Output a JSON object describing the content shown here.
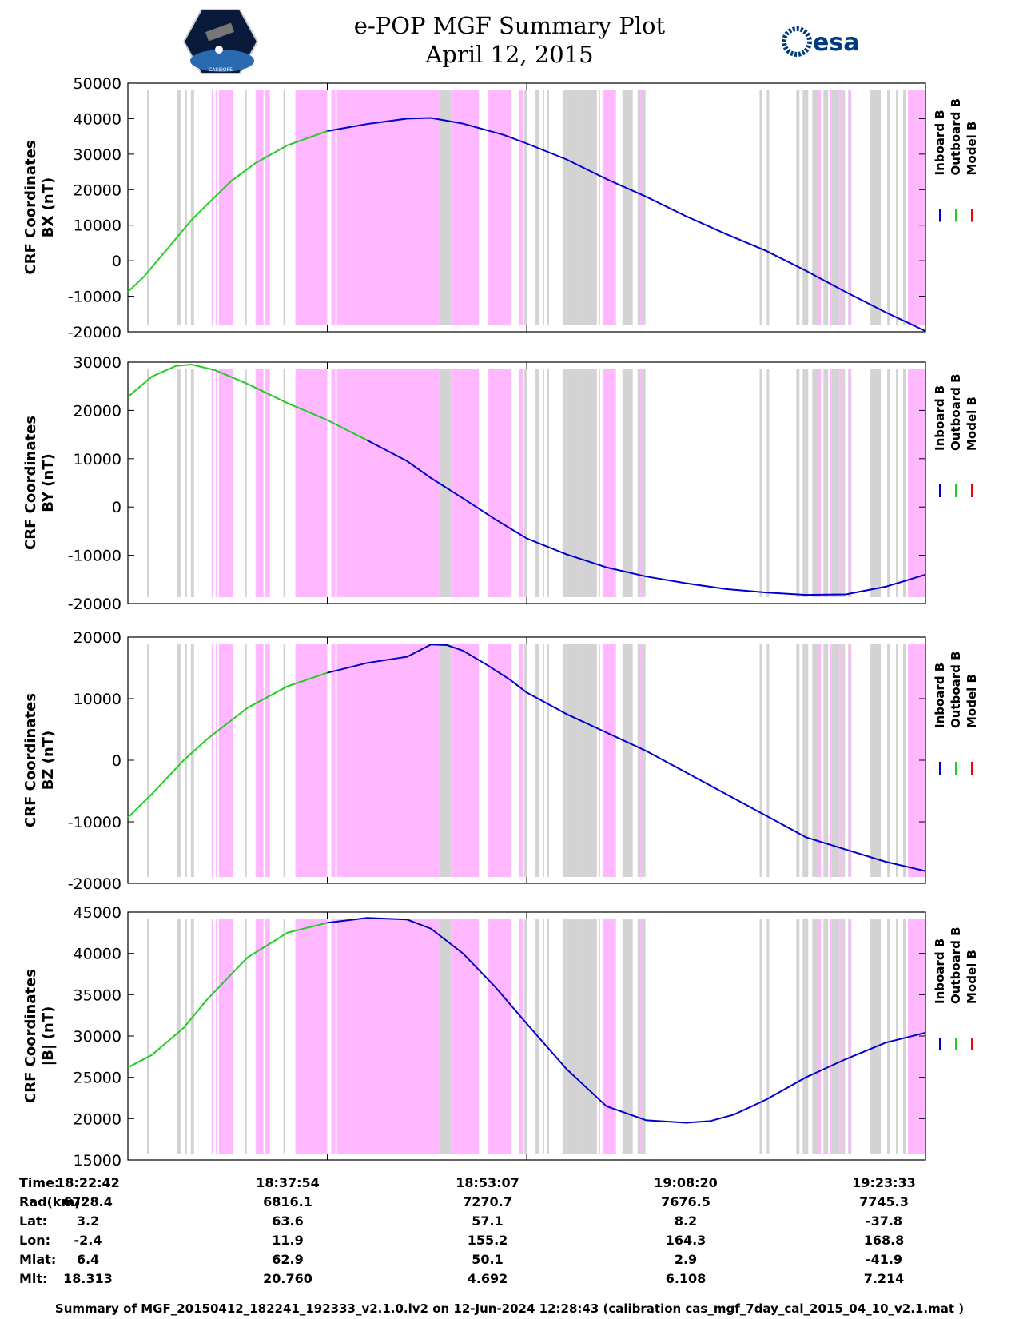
{
  "title": {
    "line1": "e-POP MGF Summary Plot",
    "line2": "April 12, 2015"
  },
  "logos": {
    "left_text": "CASSIOPE",
    "right_text": "esa"
  },
  "colors": {
    "inboard": "#0000cc",
    "outboard": "#22cc22",
    "model": "#ff0000",
    "band_gray": "#d3d3d3",
    "band_pink": "#ffb8ff"
  },
  "legend": [
    "Inboard B",
    "Outboard B",
    "Model B"
  ],
  "chart_data": [
    {
      "type": "line",
      "ylabel_top": "CRF Coordinates",
      "ylabel_bottom": "BX (nT)",
      "ylim": [
        -20000,
        50000
      ],
      "yticks": [
        -20000,
        -10000,
        0,
        10000,
        20000,
        30000,
        40000,
        50000
      ],
      "outboard_until": 0.28,
      "series": {
        "t": [
          0,
          0.02,
          0.05,
          0.08,
          0.1,
          0.13,
          0.16,
          0.2,
          0.25,
          0.3,
          0.35,
          0.38,
          0.42,
          0.47,
          0.5,
          0.55,
          0.6,
          0.65,
          0.7,
          0.75,
          0.8,
          0.85,
          0.9,
          0.95,
          1.0
        ],
        "values": [
          -8800,
          -4500,
          3500,
          11500,
          16000,
          22500,
          27500,
          32500,
          36500,
          38500,
          40000,
          40200,
          38600,
          35500,
          33000,
          28500,
          23000,
          18000,
          12500,
          7500,
          2800,
          -2800,
          -8800,
          -14500,
          -19800
        ]
      }
    },
    {
      "type": "line",
      "ylabel_top": "CRF Coordinates",
      "ylabel_bottom": "BY (nT)",
      "ylim": [
        -20000,
        30000
      ],
      "yticks": [
        -20000,
        -10000,
        0,
        10000,
        20000,
        30000
      ],
      "outboard_until": 0.3,
      "series": {
        "t": [
          0,
          0.03,
          0.06,
          0.08,
          0.11,
          0.15,
          0.2,
          0.25,
          0.3,
          0.35,
          0.38,
          0.42,
          0.46,
          0.5,
          0.55,
          0.6,
          0.65,
          0.7,
          0.75,
          0.8,
          0.85,
          0.9,
          0.95,
          1.0
        ],
        "values": [
          22800,
          27000,
          29200,
          29500,
          28300,
          25500,
          21500,
          18000,
          13800,
          9500,
          6000,
          1800,
          -2500,
          -6500,
          -9800,
          -12500,
          -14400,
          -15800,
          -17000,
          -17700,
          -18200,
          -18100,
          -16500,
          -14000
        ]
      }
    },
    {
      "type": "line",
      "ylabel_top": "CRF Coordinates",
      "ylabel_bottom": "BZ (nT)",
      "ylim": [
        -20000,
        20000
      ],
      "yticks": [
        -20000,
        -10000,
        0,
        10000,
        20000
      ],
      "outboard_until": 0.29,
      "series": {
        "t": [
          0,
          0.03,
          0.07,
          0.1,
          0.15,
          0.2,
          0.25,
          0.3,
          0.35,
          0.38,
          0.4,
          0.42,
          0.45,
          0.48,
          0.5,
          0.55,
          0.6,
          0.65,
          0.7,
          0.75,
          0.8,
          0.85,
          0.9,
          0.95,
          1.0
        ],
        "values": [
          -9300,
          -5500,
          0,
          3500,
          8500,
          12000,
          14200,
          15800,
          16800,
          18800,
          18700,
          17800,
          15500,
          13000,
          11000,
          7500,
          4500,
          1500,
          -2000,
          -5500,
          -9000,
          -12500,
          -14500,
          -16500,
          -18000
        ]
      }
    },
    {
      "type": "line",
      "ylabel_top": "CRF Coordinates",
      "ylabel_bottom": "|B| (nT)",
      "ylim": [
        15000,
        45000
      ],
      "yticks": [
        15000,
        20000,
        25000,
        30000,
        35000,
        40000,
        45000
      ],
      "outboard_until": 0.29,
      "series": {
        "t": [
          0,
          0.03,
          0.07,
          0.1,
          0.15,
          0.2,
          0.25,
          0.3,
          0.35,
          0.38,
          0.42,
          0.46,
          0.5,
          0.55,
          0.6,
          0.65,
          0.7,
          0.73,
          0.76,
          0.8,
          0.85,
          0.9,
          0.95,
          1.0
        ],
        "values": [
          26200,
          27700,
          31000,
          34500,
          39500,
          42500,
          43700,
          44300,
          44100,
          43000,
          40000,
          36000,
          31500,
          26000,
          21500,
          19800,
          19500,
          19700,
          20500,
          22300,
          25000,
          27200,
          29200,
          30400
        ]
      }
    }
  ],
  "time_axis": {
    "rows": [
      {
        "label": "Time:",
        "values": [
          "18:22:42",
          "18:37:54",
          "18:53:07",
          "19:08:20",
          "19:23:33"
        ]
      },
      {
        "label": "Rad(km):",
        "values": [
          "6728.4",
          "6816.1",
          "7270.7",
          "7676.5",
          "7745.3"
        ]
      },
      {
        "label": "Lat:",
        "values": [
          "3.2",
          "63.6",
          "57.1",
          "8.2",
          "-37.8"
        ]
      },
      {
        "label": "Lon:",
        "values": [
          "-2.4",
          "11.9",
          "155.2",
          "164.3",
          "168.8"
        ]
      },
      {
        "label": "Mlat:",
        "values": [
          "6.4",
          "62.9",
          "50.1",
          "2.9",
          "-41.9"
        ]
      },
      {
        "label": "Mlt:",
        "values": [
          "18.313",
          "20.760",
          "4.692",
          "6.108",
          "7.214"
        ]
      }
    ]
  },
  "footer": "Summary of MGF_20150412_182241_192333_v2.1.0.lv2 on 12-Jun-2024 12:28:43 (calibration cas_mgf_7day_cal_2015_04_10_v2.1.mat )"
}
